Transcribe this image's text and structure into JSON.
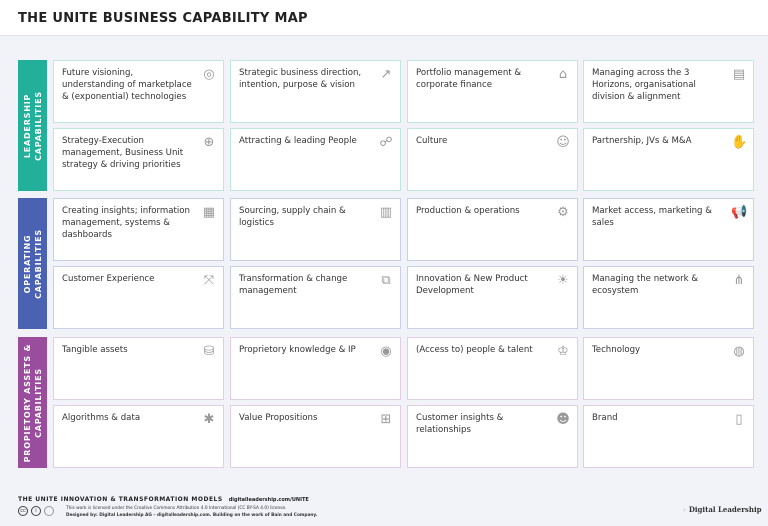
{
  "header": {
    "title": "THE UNITE BUSINESS CAPABILITY MAP"
  },
  "colors": {
    "leadership": "#23b09b",
    "operating": "#4a62b1",
    "assets": "#9a4d9c"
  },
  "sections": [
    {
      "label": "LEADERSHIP\nCAPABILITIES",
      "cards": [
        {
          "text": "Future visioning, understanding of marketplace & (exponential) technologies",
          "icon": "globe-icon"
        },
        {
          "text": "Strategic business direction, intention, purpose & vision",
          "icon": "growth-chart-icon"
        },
        {
          "text": "Portfolio management & corporate finance",
          "icon": "bank-icon"
        },
        {
          "text": "Managing across the 3 Horizons, organisational division & alignment",
          "icon": "org-chart-icon"
        },
        {
          "text": "Strategy-Execution management, Business Unit strategy & driving priorities",
          "icon": "target-icon"
        },
        {
          "text": "Attracting & leading People",
          "icon": "people-icon"
        },
        {
          "text": "Culture",
          "icon": "masks-icon"
        },
        {
          "text": "Partnership, JVs & M&A",
          "icon": "handshake-icon"
        }
      ]
    },
    {
      "label": "OPERATING\nCAPABILITIES",
      "cards": [
        {
          "text": "Creating insights; information management, systems & dashboards",
          "icon": "dashboard-icon"
        },
        {
          "text": "Sourcing, supply chain & logistics",
          "icon": "warehouse-icon"
        },
        {
          "text": "Production & operations",
          "icon": "gear-hand-icon"
        },
        {
          "text": "Market access, marketing & sales",
          "icon": "megaphone-icon"
        },
        {
          "text": "Customer Experience",
          "icon": "journey-icon"
        },
        {
          "text": "Transformation & change management",
          "icon": "transform-icon"
        },
        {
          "text": "Innovation & New Product Development",
          "icon": "lightbulb-icon"
        },
        {
          "text": "Managing the network & ecosystem",
          "icon": "network-icon"
        }
      ]
    },
    {
      "label": "PROPIETORY ASSETS &\nCAPABILITIES",
      "cards": [
        {
          "text": "Tangible assets",
          "icon": "coins-icon"
        },
        {
          "text": "Proprietory knowledge & IP",
          "icon": "brain-icon"
        },
        {
          "text": "(Access to) people & talent",
          "icon": "talent-badge-icon"
        },
        {
          "text": "Technology",
          "icon": "technology-icon"
        },
        {
          "text": "Algorithms & data",
          "icon": "chip-icon"
        },
        {
          "text": "Value Propositions",
          "icon": "gift-icon"
        },
        {
          "text": "Customer insights & relationships",
          "icon": "customer-icon"
        },
        {
          "text": "Brand",
          "icon": "bookmark-icon"
        }
      ]
    }
  ],
  "footer": {
    "series": "THE UNITE INNOVATION & TRANSFORMATION MODELS",
    "url": "digitalleadership.com/UNITE",
    "license": "This work is licensed under the Creative Commons Attribution 4.0 International (CC BY-SA 4.0) license.",
    "designed": "Designed by: Digital Leadership AG – digitalleadership.com. Building on the work of Bain and Company.",
    "cc_icons": [
      "cc-icon",
      "by-icon",
      "sa-icon"
    ],
    "brand": "Digital Leadership"
  }
}
